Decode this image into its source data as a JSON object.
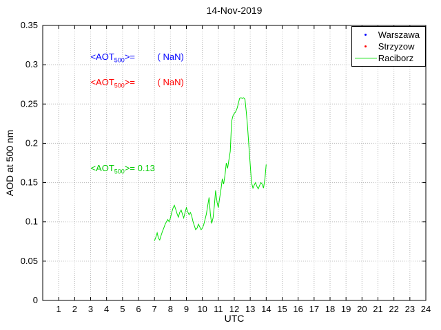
{
  "chart_data": {
    "type": "line",
    "title": "14-Nov-2019",
    "xlabel": "UTC",
    "ylabel": "AOD at 500 nm",
    "xlim": [
      0,
      24
    ],
    "ylim": [
      0,
      0.35
    ],
    "xticks": [
      1,
      2,
      3,
      4,
      5,
      6,
      7,
      8,
      9,
      10,
      11,
      12,
      13,
      14,
      15,
      16,
      17,
      18,
      19,
      20,
      21,
      22,
      23,
      24
    ],
    "yticks": [
      0,
      0.05,
      0.1,
      0.15,
      0.2,
      0.25,
      0.3,
      0.35
    ],
    "ytick_labels": [
      "0",
      "0.05",
      "0.1",
      "0.15",
      "0.2",
      "0.25",
      "0.3",
      "0.35"
    ],
    "grid": true,
    "legend_position": "top-right",
    "series": [
      {
        "name": "Warszawa",
        "color": "#0000ff",
        "marker": "dot",
        "x": [],
        "y": []
      },
      {
        "name": "Strzyzow",
        "color": "#ff0000",
        "marker": "dot",
        "x": [],
        "y": []
      },
      {
        "name": "Raciborz",
        "color": "#00e000",
        "marker": "line",
        "x": [
          7.0,
          7.08,
          7.17,
          7.25,
          7.33,
          7.42,
          7.5,
          7.58,
          7.67,
          7.75,
          7.83,
          7.92,
          8.0,
          8.08,
          8.17,
          8.25,
          8.33,
          8.42,
          8.5,
          8.58,
          8.67,
          8.75,
          8.83,
          8.92,
          9.0,
          9.08,
          9.17,
          9.25,
          9.33,
          9.42,
          9.5,
          9.58,
          9.67,
          9.75,
          9.83,
          9.92,
          10.0,
          10.08,
          10.17,
          10.25,
          10.33,
          10.42,
          10.5,
          10.58,
          10.67,
          10.75,
          10.83,
          10.92,
          11.0,
          11.08,
          11.17,
          11.25,
          11.33,
          11.42,
          11.5,
          11.58,
          11.67,
          11.75,
          11.83,
          11.92,
          12.0,
          12.08,
          12.17,
          12.25,
          12.33,
          12.42,
          12.5,
          12.58,
          12.67,
          12.75,
          12.83,
          12.92,
          13.0,
          13.08,
          13.17,
          13.25,
          13.33,
          13.42,
          13.5,
          13.58,
          13.67,
          13.75,
          13.83,
          13.92,
          14.0
        ],
        "y": [
          0.076,
          0.08,
          0.086,
          0.079,
          0.077,
          0.083,
          0.088,
          0.092,
          0.097,
          0.1,
          0.103,
          0.1,
          0.105,
          0.112,
          0.118,
          0.121,
          0.116,
          0.11,
          0.106,
          0.112,
          0.115,
          0.11,
          0.105,
          0.112,
          0.118,
          0.113,
          0.109,
          0.112,
          0.108,
          0.1,
          0.095,
          0.09,
          0.092,
          0.097,
          0.094,
          0.09,
          0.092,
          0.096,
          0.103,
          0.11,
          0.12,
          0.131,
          0.11,
          0.098,
          0.105,
          0.12,
          0.14,
          0.125,
          0.118,
          0.13,
          0.142,
          0.155,
          0.148,
          0.16,
          0.175,
          0.168,
          0.18,
          0.19,
          0.228,
          0.235,
          0.238,
          0.24,
          0.244,
          0.25,
          0.257,
          0.258,
          0.257,
          0.258,
          0.256,
          0.24,
          0.222,
          0.195,
          0.172,
          0.15,
          0.143,
          0.147,
          0.15,
          0.145,
          0.142,
          0.146,
          0.15,
          0.148,
          0.143,
          0.155,
          0.173
        ]
      }
    ],
    "annotations": [
      {
        "pre": "<AOT",
        "sub": "500",
        "post": ">=",
        "value": "         ( NaN)",
        "color": "#0000ff",
        "series": "Warszawa"
      },
      {
        "pre": "<AOT",
        "sub": "500",
        "post": ">=",
        "value": "         ( NaN)",
        "color": "#ff0000",
        "series": "Strzyzow"
      },
      {
        "pre": "<AOT",
        "sub": "500",
        "post": ">=",
        "value": " 0.13",
        "color": "#00cc00",
        "series": "Raciborz"
      }
    ]
  }
}
